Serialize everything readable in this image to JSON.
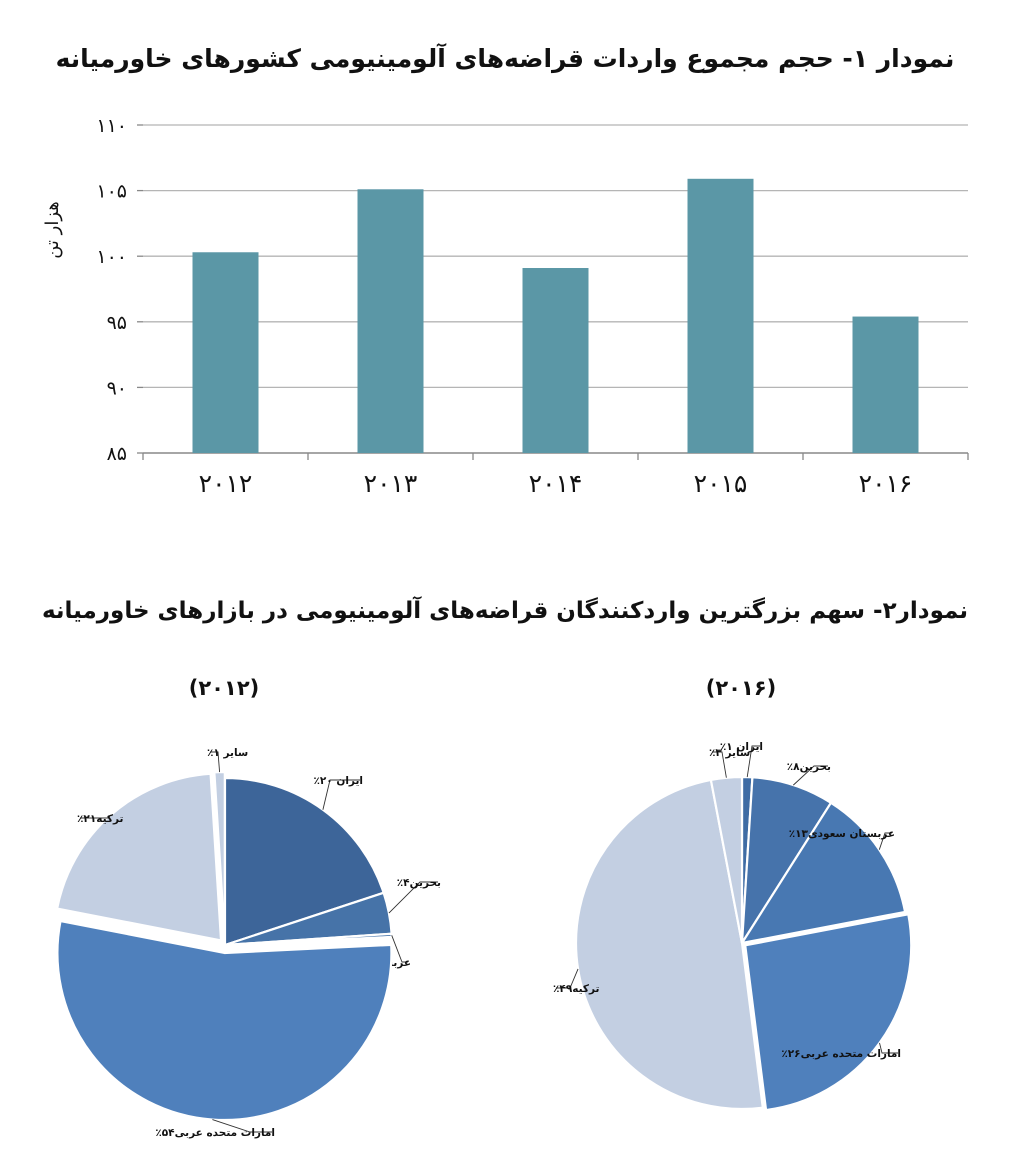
{
  "chart_data": [
    {
      "type": "bar",
      "title": "نمودار ۱- حجم مجموع واردات قراضه‌های آلومینیومی کشورهای خاورمیانه",
      "ylabel": "هزار تن",
      "xlabel": "",
      "categories": [
        "۲۰۱۲",
        "۲۰۱۳",
        "۲۰۱۴",
        "۲۰۱۵",
        "۲۰۱۶"
      ],
      "values": [
        100.3,
        105.1,
        99.1,
        105.9,
        95.4
      ],
      "ylim": [
        85,
        110
      ],
      "yticks": [
        {
          "value": 110,
          "label": "۱۱۰"
        },
        {
          "value": 105,
          "label": "۱۰۵"
        },
        {
          "value": 100,
          "label": "۱۰۰"
        },
        {
          "value": 95,
          "label": "۹۵"
        },
        {
          "value": 90,
          "label": "۹۰"
        },
        {
          "value": 85,
          "label": "۸۵"
        }
      ],
      "grid": true,
      "bar_color": "#5b97a6"
    },
    {
      "type": "pie",
      "title": "نمودار۲- سهم بزرگترین واردکنندگان قراضه‌های آلومینیومی در بازارهای خاورمیانه",
      "subtitle": "(۲۰۱۲)",
      "slices": [
        {
          "label": "ایران ۲۰٪",
          "value": 20,
          "color": "#3d6599"
        },
        {
          "label": "بحرین۴٪",
          "value": 4,
          "color": "#4673a8"
        },
        {
          "label": "عربستان سعودی۰٪",
          "value": 0.3,
          "color": "#4674ab"
        },
        {
          "label": "امارات متحده عربی۵۴٪",
          "value": 54,
          "color": "#4f80bc"
        },
        {
          "label": "ترکیه۲۱٪",
          "value": 21,
          "color": "#c3cfe2"
        },
        {
          "label": "سایر ۱٪",
          "value": 1,
          "color": "#c3cfe2"
        }
      ]
    },
    {
      "type": "pie",
      "subtitle": "(۲۰۱۶)",
      "slices": [
        {
          "label": "ایران ۱٪",
          "value": 1,
          "color": "#3f6ca4"
        },
        {
          "label": "بحرین۸٪",
          "value": 8,
          "color": "#4673ab"
        },
        {
          "label": "عربستان سعودی۱۳٪",
          "value": 13,
          "color": "#4878b2"
        },
        {
          "label": "امارات متحده عربی۲۶٪",
          "value": 26,
          "color": "#4f80bc"
        },
        {
          "label": "ترکیه۴۹٪",
          "value": 49,
          "color": "#c3cfe2"
        },
        {
          "label": "سایر ۳٪",
          "value": 3,
          "color": "#c3cfe2"
        }
      ]
    }
  ]
}
